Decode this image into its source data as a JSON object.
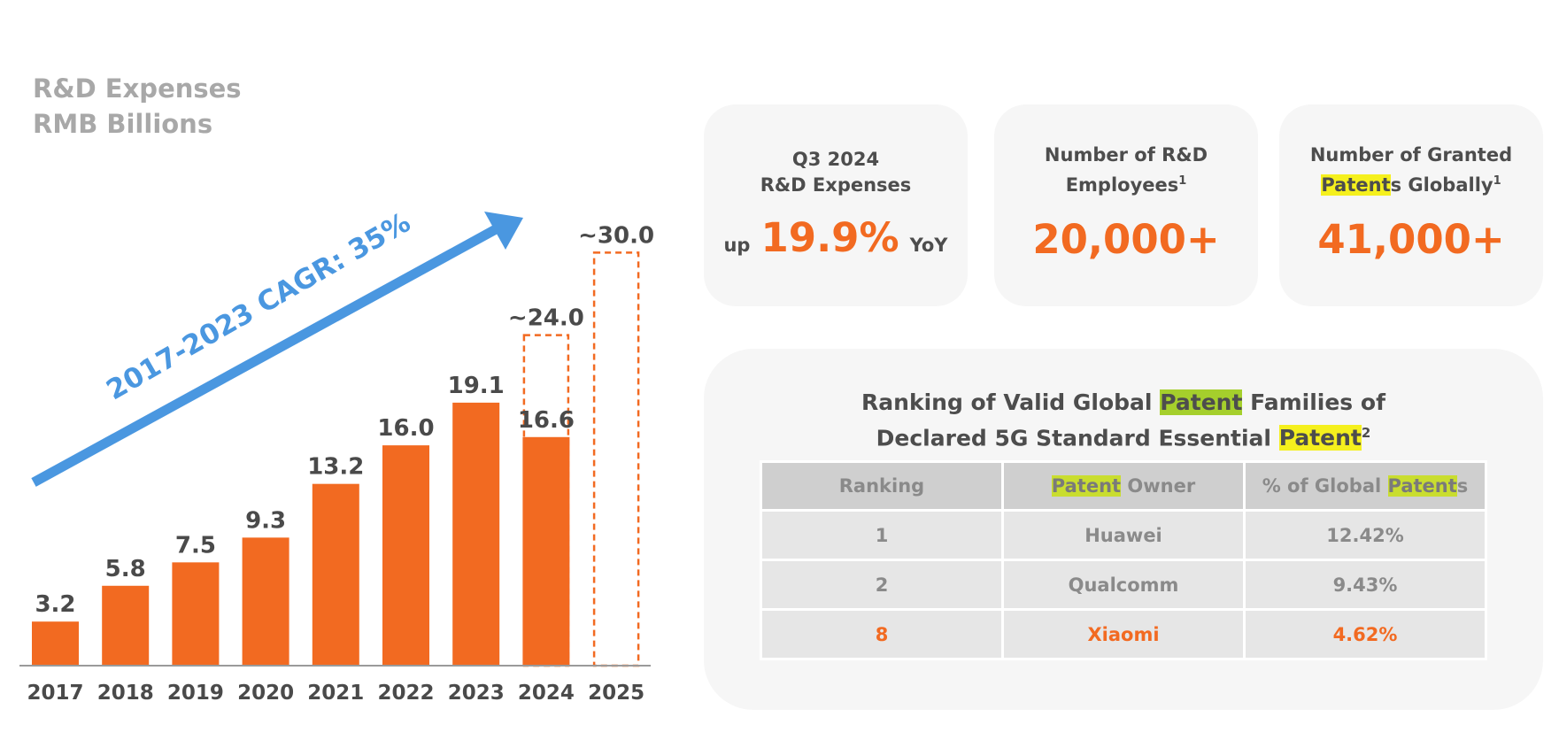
{
  "chart_data": {
    "type": "bar",
    "title_line1": "R&D Expenses",
    "title_line2": "RMB Billions",
    "categories": [
      "2017",
      "2018",
      "2019",
      "2020",
      "2021",
      "2022",
      "2023",
      "2024",
      "2025"
    ],
    "values": [
      3.2,
      5.8,
      7.5,
      9.3,
      13.2,
      16.0,
      19.1,
      16.6,
      null
    ],
    "value_labels": [
      "3.2",
      "5.8",
      "7.5",
      "9.3",
      "13.2",
      "16.0",
      "19.1",
      "16.6",
      ""
    ],
    "estimates": [
      {
        "category": "2024",
        "value": 24.0,
        "label": "~24.0"
      },
      {
        "category": "2025",
        "value": 30.0,
        "label": "~30.0"
      }
    ],
    "annotation": "2017-2023 CAGR: 35%",
    "ylim": [
      0,
      31.5
    ],
    "bar_color": "#f26a21",
    "arrow_color": "#4a97e0"
  },
  "kpis": [
    {
      "label_line1": "Q3 2024",
      "label_line2": "R&D Expenses",
      "prefix": "up",
      "value": "19.9%",
      "suffix": "YoY"
    },
    {
      "label_line1": "Number of R&D",
      "label_line2": "Employees",
      "footnote": "1",
      "value": "20,000+"
    },
    {
      "label_part1": "Number of Granted",
      "label_hl": "Patent",
      "label_rest": "s Globally",
      "footnote": "1",
      "value": "41,000+"
    }
  ],
  "ranking": {
    "title_line1_pre": "Ranking of Valid Global ",
    "title_line1_hl": "Patent",
    "title_line1_post": " Families of",
    "title_line2_pre": "Declared 5G Standard Essential ",
    "title_line2_hl": "Patent",
    "title_footnote": "2",
    "headers": {
      "col1": "Ranking",
      "col2_hl": "Patent",
      "col2_rest": " Owner",
      "col3_pre": "% of Global ",
      "col3_hl": "Patent",
      "col3_post": "s"
    },
    "rows": [
      {
        "rank": "1",
        "owner": "Huawei",
        "share": "12.42%"
      },
      {
        "rank": "2",
        "owner": "Qualcomm",
        "share": "9.43%"
      },
      {
        "rank": "8",
        "owner": "Xiaomi",
        "share": "4.62%"
      }
    ]
  }
}
